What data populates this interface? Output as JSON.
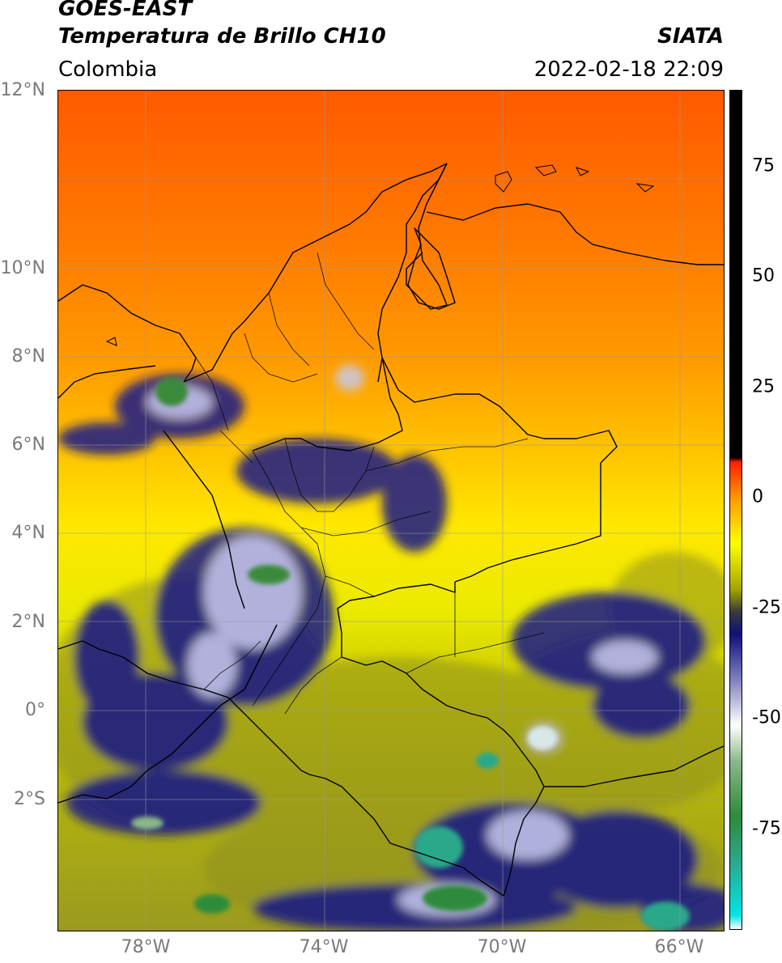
{
  "header": {
    "title_line1": "GOES-EAST",
    "title_line2": "Temperatura de Brillo CH10",
    "region": "Colombia",
    "organization": "SIATA",
    "timestamp": "2022-02-18 22:09"
  },
  "map": {
    "lat_ticks": [
      "12°N",
      "10°N",
      "8°N",
      "6°N",
      "4°N",
      "2°N",
      "0°",
      "2°S"
    ],
    "lon_ticks": [
      "78°W",
      "74°W",
      "70°W",
      "66°W"
    ],
    "extent": {
      "lon_min": -79.8,
      "lon_max": -64.9,
      "lat_min": -4.8,
      "lat_max": 14.0
    }
  },
  "colorbar": {
    "ticks": [
      "75",
      "50",
      "25",
      "0",
      "-25",
      "-50",
      "-75"
    ],
    "range": [
      -95,
      90
    ],
    "stops": [
      {
        "value": -95,
        "color": "#ffffff"
      },
      {
        "value": -92,
        "color": "#00e5e5"
      },
      {
        "value": -80,
        "color": "#2aa88a"
      },
      {
        "value": -70,
        "color": "#2e8b3a"
      },
      {
        "value": -58,
        "color": "#8ab88a"
      },
      {
        "value": -50,
        "color": "#ffffff"
      },
      {
        "value": -40,
        "color": "#8080c0"
      },
      {
        "value": -30,
        "color": "#10107a"
      },
      {
        "value": -25,
        "color": "#3a3a3a"
      },
      {
        "value": -20,
        "color": "#a5a500"
      },
      {
        "value": -10,
        "color": "#ffff00"
      },
      {
        "value": 0,
        "color": "#ff9900"
      },
      {
        "value": 8,
        "color": "#ff2000"
      },
      {
        "value": 9,
        "color": "#000000"
      },
      {
        "value": 90,
        "color": "#000000"
      }
    ]
  }
}
